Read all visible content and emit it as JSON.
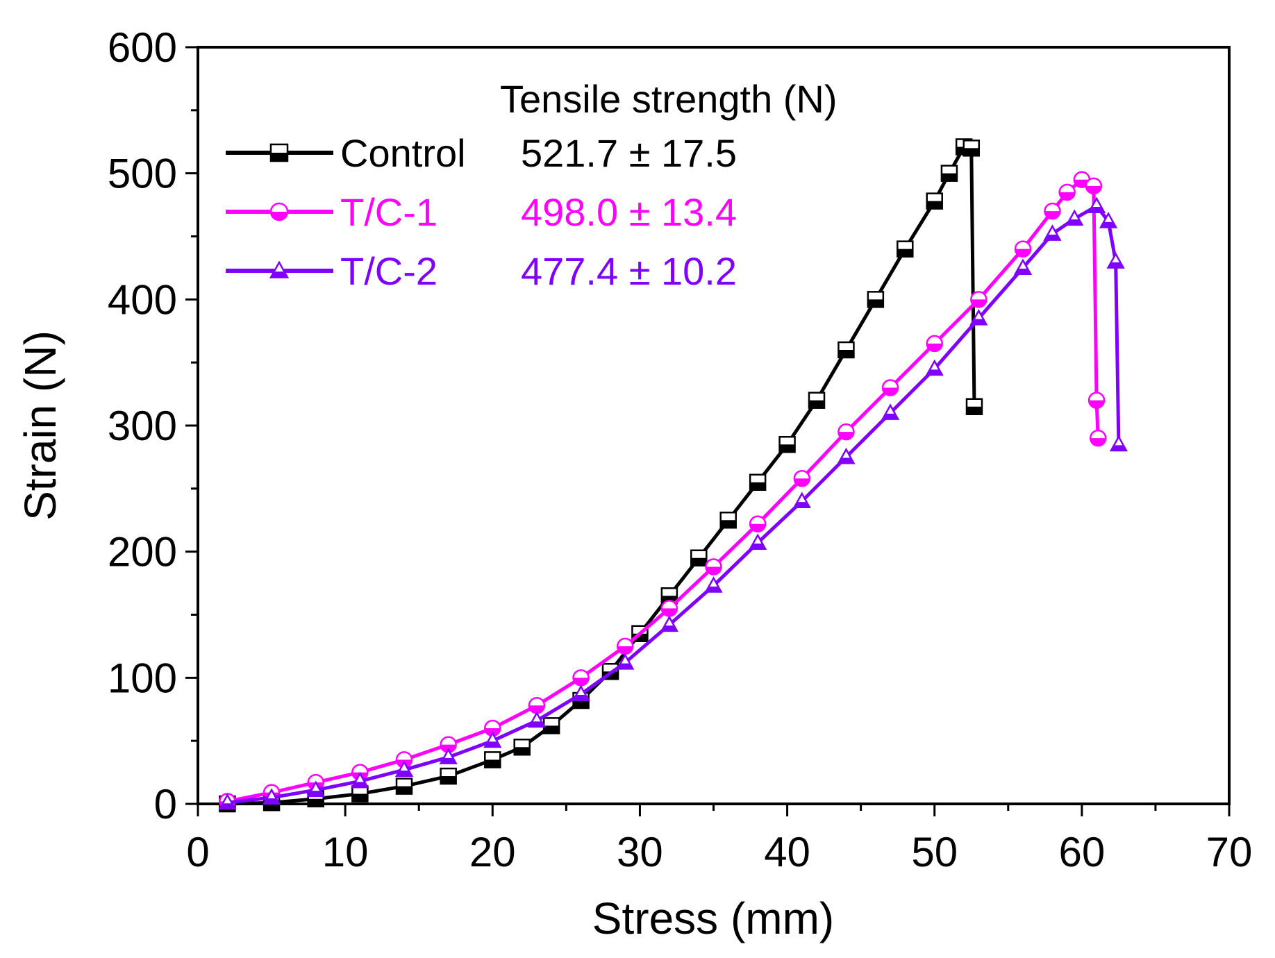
{
  "chart_data": {
    "type": "line",
    "xlabel": "Stress (mm)",
    "ylabel": "Strain (N)",
    "xlim": [
      0,
      70
    ],
    "ylim": [
      0,
      600
    ],
    "xticks": [
      0,
      10,
      20,
      30,
      40,
      50,
      60,
      70
    ],
    "yticks": [
      0,
      100,
      200,
      300,
      400,
      500,
      600
    ],
    "grid": false,
    "legend": {
      "title": "Tensile strength (N)",
      "position": "top-left",
      "entries": [
        {
          "name": "Control",
          "value": "521.7 ± 17.5",
          "color": "#000000",
          "marker": "half-filled square"
        },
        {
          "name": "T/C-1",
          "value": "498.0 ± 13.4",
          "color": "#ff00ff",
          "marker": "half-filled circle"
        },
        {
          "name": "T/C-2",
          "value": "477.4 ± 10.2",
          "color": "#7f00ff",
          "marker": "half-filled triangle"
        }
      ]
    },
    "series": [
      {
        "name": "Control",
        "color": "#000000",
        "marker": "square",
        "x": [
          2,
          5,
          8,
          11,
          14,
          17,
          20,
          22,
          24,
          26,
          28,
          30,
          32,
          34,
          36,
          38,
          40,
          42,
          44,
          46,
          48,
          50,
          51,
          52,
          52.5,
          52.7
        ],
        "y": [
          0,
          1,
          4,
          8,
          14,
          22,
          35,
          45,
          62,
          82,
          105,
          135,
          165,
          195,
          225,
          255,
          285,
          320,
          360,
          400,
          440,
          478,
          500,
          521,
          520,
          315
        ]
      },
      {
        "name": "T/C-1",
        "color": "#ff00ff",
        "marker": "circle",
        "x": [
          2,
          5,
          8,
          11,
          14,
          17,
          20,
          23,
          26,
          29,
          32,
          35,
          38,
          41,
          44,
          47,
          50,
          53,
          56,
          58,
          59,
          60,
          60.8,
          61,
          61.1
        ],
        "y": [
          2,
          9,
          17,
          25,
          35,
          47,
          60,
          78,
          100,
          125,
          155,
          188,
          222,
          258,
          295,
          330,
          365,
          400,
          440,
          470,
          485,
          495,
          490,
          320,
          290
        ]
      },
      {
        "name": "T/C-2",
        "color": "#7f00ff",
        "marker": "triangle",
        "x": [
          2,
          5,
          8,
          11,
          14,
          17,
          20,
          23,
          26,
          29,
          32,
          35,
          38,
          41,
          44,
          47,
          50,
          53,
          56,
          58,
          59.5,
          61,
          61.8,
          62.3,
          62.5
        ],
        "y": [
          1,
          5,
          11,
          18,
          27,
          37,
          50,
          66,
          87,
          112,
          142,
          173,
          207,
          240,
          275,
          310,
          345,
          385,
          425,
          452,
          464,
          474,
          462,
          430,
          285
        ]
      }
    ]
  }
}
